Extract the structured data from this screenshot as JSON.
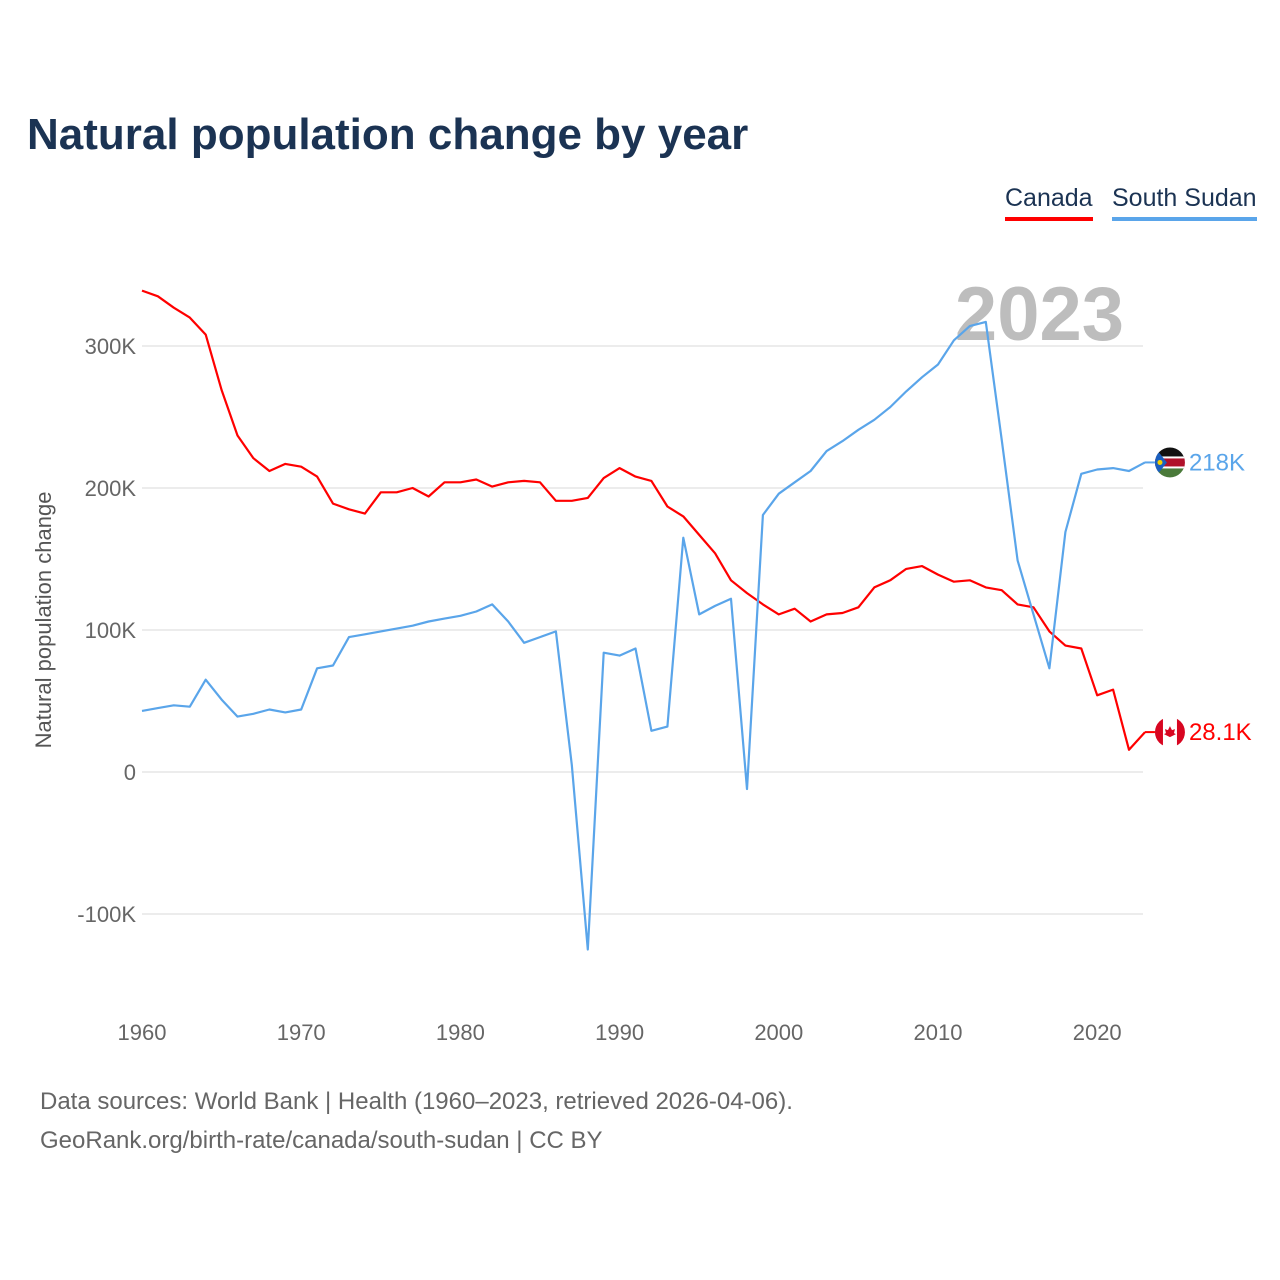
{
  "chart_data": {
    "type": "line",
    "title": "Natural population change by year",
    "ylabel": "Natural population change",
    "xlabel": "",
    "xlim": [
      1960,
      2023
    ],
    "ylim": [
      -160000,
      340000
    ],
    "x_ticks": [
      "1960",
      "1970",
      "1980",
      "1990",
      "2000",
      "2010",
      "2020"
    ],
    "y_ticks": [
      {
        "value": 300000,
        "label": "300K"
      },
      {
        "value": 200000,
        "label": "200K"
      },
      {
        "value": 100000,
        "label": "100K"
      },
      {
        "value": 0,
        "label": "0"
      },
      {
        "value": -100000,
        "label": "-100K"
      }
    ],
    "grid": true,
    "legend_position": "top-right",
    "watermark_year": "2023",
    "x": [
      1960,
      1961,
      1962,
      1963,
      1964,
      1965,
      1966,
      1967,
      1968,
      1969,
      1970,
      1971,
      1972,
      1973,
      1974,
      1975,
      1976,
      1977,
      1978,
      1979,
      1980,
      1981,
      1982,
      1983,
      1984,
      1985,
      1986,
      1987,
      1988,
      1989,
      1990,
      1991,
      1992,
      1993,
      1994,
      1995,
      1996,
      1997,
      1998,
      1999,
      2000,
      2001,
      2002,
      2003,
      2004,
      2005,
      2006,
      2007,
      2008,
      2009,
      2010,
      2011,
      2012,
      2013,
      2014,
      2015,
      2016,
      2017,
      2018,
      2019,
      2020,
      2021,
      2022,
      2023
    ],
    "series": [
      {
        "name": "Canada",
        "color": "#ff0000",
        "end_label": "28.1K",
        "flag": "canada-flag",
        "values": [
          339000,
          335000,
          327000,
          320000,
          308000,
          269000,
          237000,
          221000,
          212000,
          217000,
          215000,
          208000,
          189000,
          185000,
          182000,
          197000,
          197000,
          200000,
          194000,
          204000,
          204000,
          206000,
          201000,
          204000,
          205000,
          204000,
          191000,
          191000,
          193000,
          207000,
          214000,
          208000,
          205000,
          187000,
          180000,
          167000,
          154000,
          135000,
          126000,
          118000,
          111000,
          115000,
          106000,
          111000,
          112000,
          116000,
          130000,
          135000,
          143000,
          145000,
          139000,
          134000,
          135000,
          130000,
          128000,
          118000,
          116000,
          99000,
          89000,
          87000,
          54000,
          58000,
          15600,
          28100
        ]
      },
      {
        "name": "South Sudan",
        "color": "#5aa5ea",
        "end_label": "218K",
        "flag": "south-sudan-flag",
        "values": [
          43000,
          45000,
          47000,
          46000,
          65000,
          51000,
          39000,
          41000,
          44000,
          42000,
          44000,
          73000,
          75000,
          95000,
          97000,
          99000,
          101000,
          103000,
          106000,
          108000,
          110000,
          113000,
          118000,
          106000,
          91000,
          95000,
          99000,
          5000,
          -125000,
          84000,
          82000,
          87000,
          29000,
          32000,
          165000,
          111000,
          117000,
          122000,
          -12000,
          181000,
          196000,
          204000,
          212000,
          226000,
          233000,
          241000,
          248000,
          257000,
          268000,
          278000,
          287000,
          304000,
          314000,
          317000,
          234000,
          149000,
          111000,
          73000,
          169000,
          210000,
          213000,
          214000,
          212000,
          218000
        ]
      }
    ]
  },
  "footer": {
    "line1": "Data sources: World Bank | Health (1960–2023, retrieved 2026-04-06).",
    "line2": "GeoRank.org/birth-rate/canada/south-sudan | CC BY"
  }
}
